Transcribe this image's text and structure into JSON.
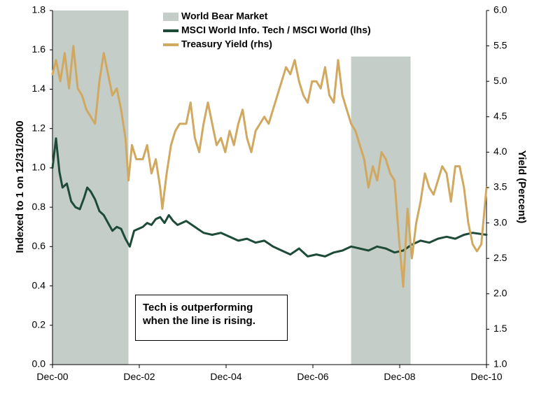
{
  "chart_data": {
    "type": "line",
    "title": "",
    "legend": [
      {
        "name": "World Bear Market",
        "kind": "shaded",
        "color": "#c4cdc7"
      },
      {
        "name": "MSCI World Info. Tech / MSCI World (lhs)",
        "kind": "line",
        "color": "#1e4a38"
      },
      {
        "name": "Treasury Yield (rhs)",
        "kind": "line",
        "color": "#d1a860"
      }
    ],
    "xlabel": "",
    "ylabel_left": "Indexed to 1 on 12/31/2000",
    "ylabel_right": "Yield (Percent)",
    "x_range": [
      2000.92,
      2010.92
    ],
    "x_ticks": [
      {
        "value": 2000.92,
        "label": "Dec-00"
      },
      {
        "value": 2002.92,
        "label": "Dec-02"
      },
      {
        "value": 2004.92,
        "label": "Dec-04"
      },
      {
        "value": 2006.92,
        "label": "Dec-06"
      },
      {
        "value": 2008.92,
        "label": "Dec-08"
      },
      {
        "value": 2010.92,
        "label": "Dec-10"
      }
    ],
    "ylim_left": [
      0,
      1.8
    ],
    "yticks_left": [
      "0.0",
      "0.2",
      "0.4",
      "0.6",
      "0.8",
      "1.0",
      "1.2",
      "1.4",
      "1.6",
      "1.8"
    ],
    "ylim_right": [
      1.0,
      6.0
    ],
    "yticks_right": [
      "1.0",
      "1.5",
      "2.0",
      "2.5",
      "3.0",
      "3.5",
      "4.0",
      "4.5",
      "5.0",
      "5.5",
      "6.0"
    ],
    "bear_markets": [
      {
        "start": 2000.92,
        "end": 2002.67
      },
      {
        "start": 2007.8,
        "end": 2009.17
      }
    ],
    "series": [
      {
        "name": "MSCI World Info. Tech / MSCI World (lhs)",
        "axis": "left",
        "x": [
          2000.92,
          2001.0,
          2001.08,
          2001.15,
          2001.25,
          2001.35,
          2001.45,
          2001.55,
          2001.65,
          2001.72,
          2001.8,
          2001.9,
          2002.0,
          2002.1,
          2002.2,
          2002.3,
          2002.4,
          2002.5,
          2002.6,
          2002.7,
          2002.8,
          2002.9,
          2003.0,
          2003.1,
          2003.2,
          2003.3,
          2003.4,
          2003.5,
          2003.6,
          2003.7,
          2003.8,
          2003.9,
          2004.0,
          2004.2,
          2004.4,
          2004.6,
          2004.8,
          2005.0,
          2005.2,
          2005.4,
          2005.6,
          2005.8,
          2006.0,
          2006.2,
          2006.4,
          2006.6,
          2006.8,
          2007.0,
          2007.2,
          2007.4,
          2007.6,
          2007.8,
          2008.0,
          2008.2,
          2008.4,
          2008.6,
          2008.8,
          2009.0,
          2009.2,
          2009.4,
          2009.6,
          2009.8,
          2010.0,
          2010.2,
          2010.4,
          2010.6,
          2010.92
        ],
        "values": [
          1.0,
          1.15,
          0.98,
          0.9,
          0.92,
          0.83,
          0.8,
          0.79,
          0.85,
          0.9,
          0.88,
          0.84,
          0.78,
          0.76,
          0.72,
          0.68,
          0.7,
          0.69,
          0.64,
          0.6,
          0.68,
          0.69,
          0.7,
          0.72,
          0.71,
          0.74,
          0.75,
          0.72,
          0.76,
          0.73,
          0.71,
          0.72,
          0.73,
          0.7,
          0.67,
          0.66,
          0.67,
          0.65,
          0.63,
          0.64,
          0.62,
          0.63,
          0.6,
          0.58,
          0.56,
          0.59,
          0.55,
          0.56,
          0.55,
          0.57,
          0.58,
          0.6,
          0.59,
          0.58,
          0.6,
          0.59,
          0.57,
          0.58,
          0.61,
          0.63,
          0.62,
          0.64,
          0.65,
          0.64,
          0.66,
          0.67,
          0.66
        ]
      },
      {
        "name": "Treasury Yield (rhs)",
        "axis": "right",
        "x": [
          2000.92,
          2001.0,
          2001.1,
          2001.2,
          2001.3,
          2001.4,
          2001.5,
          2001.6,
          2001.7,
          2001.8,
          2001.9,
          2002.0,
          2002.1,
          2002.2,
          2002.3,
          2002.4,
          2002.5,
          2002.6,
          2002.67,
          2002.75,
          2002.85,
          2003.0,
          2003.1,
          2003.2,
          2003.3,
          2003.4,
          2003.45,
          2003.55,
          2003.65,
          2003.75,
          2003.85,
          2004.0,
          2004.1,
          2004.2,
          2004.3,
          2004.4,
          2004.5,
          2004.6,
          2004.7,
          2004.8,
          2004.9,
          2005.0,
          2005.1,
          2005.2,
          2005.3,
          2005.4,
          2005.5,
          2005.6,
          2005.7,
          2005.8,
          2005.9,
          2006.0,
          2006.1,
          2006.2,
          2006.3,
          2006.4,
          2006.5,
          2006.6,
          2006.7,
          2006.8,
          2006.9,
          2007.0,
          2007.1,
          2007.2,
          2007.3,
          2007.4,
          2007.5,
          2007.6,
          2007.7,
          2007.8,
          2007.9,
          2008.0,
          2008.1,
          2008.2,
          2008.3,
          2008.4,
          2008.5,
          2008.6,
          2008.7,
          2008.8,
          2008.9,
          2009.0,
          2009.1,
          2009.2,
          2009.3,
          2009.4,
          2009.5,
          2009.6,
          2009.7,
          2009.8,
          2009.9,
          2010.0,
          2010.1,
          2010.2,
          2010.3,
          2010.4,
          2010.5,
          2010.6,
          2010.7,
          2010.8,
          2010.92
        ],
        "values": [
          5.1,
          5.3,
          5.0,
          5.4,
          4.9,
          5.5,
          4.9,
          4.8,
          4.6,
          4.5,
          4.4,
          5.0,
          5.4,
          5.1,
          4.8,
          4.9,
          4.6,
          4.2,
          3.6,
          4.1,
          3.9,
          3.9,
          4.1,
          3.7,
          3.9,
          3.5,
          3.2,
          3.7,
          4.1,
          4.3,
          4.4,
          4.4,
          4.7,
          4.2,
          4.0,
          4.4,
          4.7,
          4.4,
          4.1,
          4.2,
          4.0,
          4.3,
          4.1,
          4.4,
          4.6,
          4.2,
          4.0,
          4.3,
          4.4,
          4.5,
          4.4,
          4.6,
          4.8,
          5.0,
          5.2,
          5.1,
          5.3,
          5.0,
          4.8,
          4.7,
          5.0,
          5.0,
          4.9,
          5.2,
          4.8,
          4.7,
          5.3,
          4.8,
          4.6,
          4.4,
          4.3,
          4.1,
          3.9,
          3.5,
          3.8,
          3.6,
          4.0,
          3.9,
          3.7,
          3.6,
          2.8,
          2.1,
          3.2,
          2.5,
          3.0,
          3.3,
          3.7,
          3.5,
          3.4,
          3.6,
          3.8,
          3.7,
          3.3,
          3.8,
          3.8,
          3.5,
          3.0,
          2.7,
          2.6,
          2.7,
          3.5
        ]
      }
    ]
  },
  "annotation": {
    "line1": "Tech is outperforming",
    "line2": "when the line is rising."
  }
}
